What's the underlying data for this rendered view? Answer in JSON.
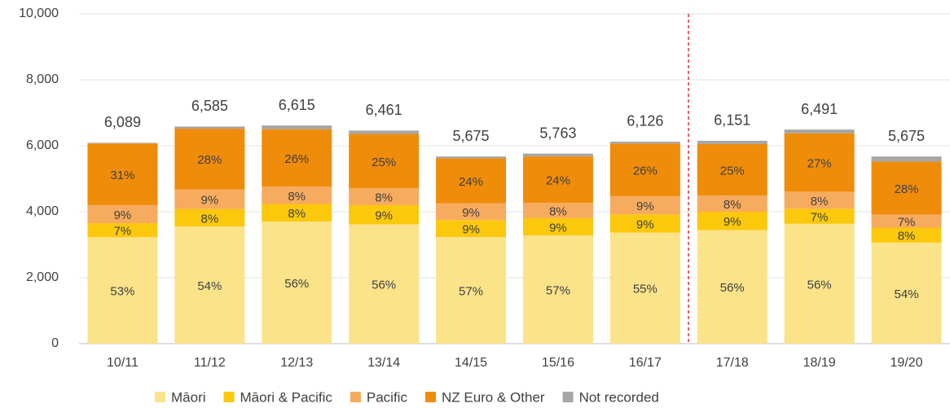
{
  "chart_data": {
    "type": "stacked_bar",
    "categories": [
      "10/11",
      "11/12",
      "12/13",
      "13/14",
      "14/15",
      "15/16",
      "16/17",
      "17/18",
      "18/19",
      "19/20"
    ],
    "series": [
      {
        "name": "Māori",
        "color": "#fbe38a",
        "values": [
          3227,
          3556,
          3704,
          3618,
          3235,
          3285,
          3369,
          3445,
          3635,
          3065
        ],
        "share_labels": [
          "53%",
          "54%",
          "56%",
          "56%",
          "57%",
          "57%",
          "55%",
          "56%",
          "56%",
          "54%"
        ]
      },
      {
        "name": "Māori & Pacific",
        "color": "#fcc80c",
        "values": [
          426,
          527,
          529,
          581,
          511,
          519,
          551,
          554,
          454,
          454
        ],
        "share_labels": [
          "7%",
          "8%",
          "8%",
          "9%",
          "9%",
          "9%",
          "9%",
          "9%",
          "7%",
          "8%"
        ]
      },
      {
        "name": "Pacific",
        "color": "#f7ab5e",
        "values": [
          548,
          593,
          529,
          517,
          511,
          461,
          551,
          492,
          519,
          397
        ],
        "share_labels": [
          "9%",
          "9%",
          "8%",
          "8%",
          "9%",
          "8%",
          "9%",
          "8%",
          "8%",
          "7%"
        ]
      },
      {
        "name": "NZ Euro & Other",
        "color": "#ef8c0a",
        "values": [
          1868,
          1844,
          1740,
          1640,
          1362,
          1410,
          1593,
          1560,
          1770,
          1605
        ],
        "share_labels": [
          "31%",
          "28%",
          "26%",
          "25%",
          "24%",
          "24%",
          "26%",
          "25%",
          "27%",
          "28%"
        ]
      },
      {
        "name": "Not recorded",
        "color": "#a6a6a6",
        "values": [
          20,
          65,
          113,
          105,
          56,
          88,
          62,
          100,
          113,
          154
        ]
      }
    ],
    "totals": [
      6089,
      6585,
      6615,
      6461,
      5675,
      5763,
      6126,
      6151,
      6491,
      5675
    ],
    "total_labels": [
      "6,089",
      "6,585",
      "6,615",
      "6,461",
      "5,675",
      "5,763",
      "6,126",
      "6,151",
      "6,491",
      "5,675"
    ],
    "ylim": [
      0,
      10000
    ],
    "yticks": [
      0,
      {
        "value": 2000,
        "label": "2,000"
      },
      {
        "value": 4000,
        "label": "4,000"
      },
      {
        "value": 6000,
        "label": "6,000"
      },
      {
        "value": 8000,
        "label": "8,000"
      },
      {
        "value": 10000,
        "label": "10,000"
      }
    ],
    "grid": true,
    "legend": "bottom"
  }
}
